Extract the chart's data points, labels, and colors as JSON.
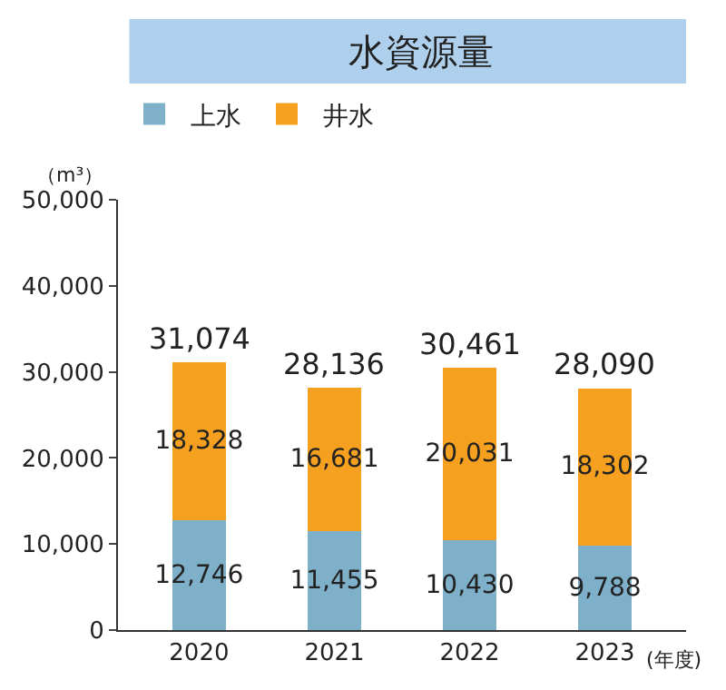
{
  "chart_data": {
    "type": "bar",
    "title": "水資源量",
    "ylabel": "（m³）",
    "xlabel": "(年度)",
    "categories": [
      "2020",
      "2021",
      "2022",
      "2023"
    ],
    "series": [
      {
        "name": "上水",
        "color": "#7fb0c9",
        "values": [
          12746,
          11455,
          10430,
          9788
        ],
        "value_labels": [
          "12,746",
          "11,455",
          "10,430",
          "9,788"
        ]
      },
      {
        "name": "井水",
        "color": "#f5a01f",
        "values": [
          18328,
          16681,
          20031,
          18302
        ],
        "value_labels": [
          "18,328",
          "16,681",
          "20,031",
          "18,302"
        ]
      }
    ],
    "stacked": true,
    "totals": [
      "31,074",
      "28,136",
      "30,461",
      "28,090"
    ],
    "ylim": [
      0,
      50000
    ],
    "yticks": [
      0,
      {
        "value": 10000,
        "label": "10,000"
      },
      {
        "value": 20000,
        "label": "20,000"
      },
      {
        "value": 30000,
        "label": "30,000"
      },
      {
        "value": 40000,
        "label": "40,000"
      },
      {
        "value": 50000,
        "label": "50,000"
      }
    ],
    "legend": "top left"
  }
}
